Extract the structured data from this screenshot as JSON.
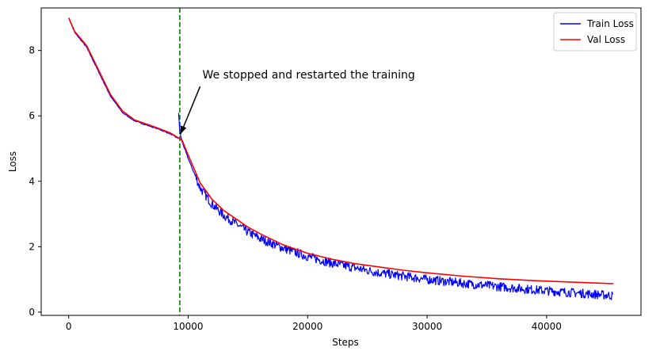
{
  "chart_data": {
    "type": "line",
    "title": "",
    "xlabel": "Steps",
    "ylabel": "Loss",
    "xlim": [
      -2300,
      47900
    ],
    "ylim": [
      -0.1,
      9.3
    ],
    "xticks": [
      0,
      10000,
      20000,
      30000,
      40000
    ],
    "xtick_labels": [
      "0",
      "10000",
      "20000",
      "30000",
      "40000"
    ],
    "yticks": [
      0,
      2,
      4,
      6,
      8
    ],
    "ytick_labels": [
      "0",
      "2",
      "4",
      "6",
      "8"
    ],
    "grid": false,
    "legend_position": "top-right",
    "series": [
      {
        "name": "Train Loss",
        "color": "#0000ff",
        "noisy": true,
        "x": [
          0,
          500,
          1500,
          2500,
          3500,
          4500,
          5500,
          6500,
          7500,
          8500,
          9200,
          9200,
          9300,
          9500,
          10000,
          11000,
          12000,
          13000,
          14000,
          15000,
          16000,
          18000,
          20000,
          22000,
          24000,
          26000,
          28000,
          30000,
          33000,
          36000,
          39000,
          42000,
          45600
        ],
        "y": [
          9.0,
          8.55,
          8.1,
          7.35,
          6.6,
          6.1,
          5.85,
          5.72,
          5.6,
          5.45,
          5.3,
          6.1,
          5.5,
          5.2,
          4.7,
          3.8,
          3.3,
          2.95,
          2.7,
          2.45,
          2.25,
          1.95,
          1.7,
          1.5,
          1.35,
          1.2,
          1.1,
          1.0,
          0.88,
          0.78,
          0.68,
          0.6,
          0.5
        ]
      },
      {
        "name": "Val Loss",
        "color": "#ff0000",
        "noisy": false,
        "x": [
          0,
          500,
          1500,
          2500,
          3500,
          4500,
          5500,
          6500,
          7500,
          8500,
          9300,
          9500,
          10000,
          11000,
          12000,
          13000,
          14000,
          15000,
          16000,
          18000,
          20000,
          22000,
          24000,
          26000,
          28000,
          30000,
          33000,
          36000,
          39000,
          42000,
          45600
        ],
        "y": [
          9.0,
          8.58,
          8.15,
          7.4,
          6.65,
          6.15,
          5.88,
          5.75,
          5.62,
          5.48,
          5.3,
          5.25,
          4.8,
          3.95,
          3.45,
          3.1,
          2.85,
          2.6,
          2.4,
          2.05,
          1.8,
          1.62,
          1.48,
          1.38,
          1.28,
          1.2,
          1.1,
          1.02,
          0.96,
          0.92,
          0.87
        ]
      }
    ],
    "vline": {
      "x": 9300,
      "color": "#008000",
      "style": "dashed"
    },
    "annotation": {
      "text": "We stopped and restarted the training",
      "xy": [
        9300,
        5.3
      ],
      "xytext": [
        11000,
        6.9
      ]
    }
  }
}
